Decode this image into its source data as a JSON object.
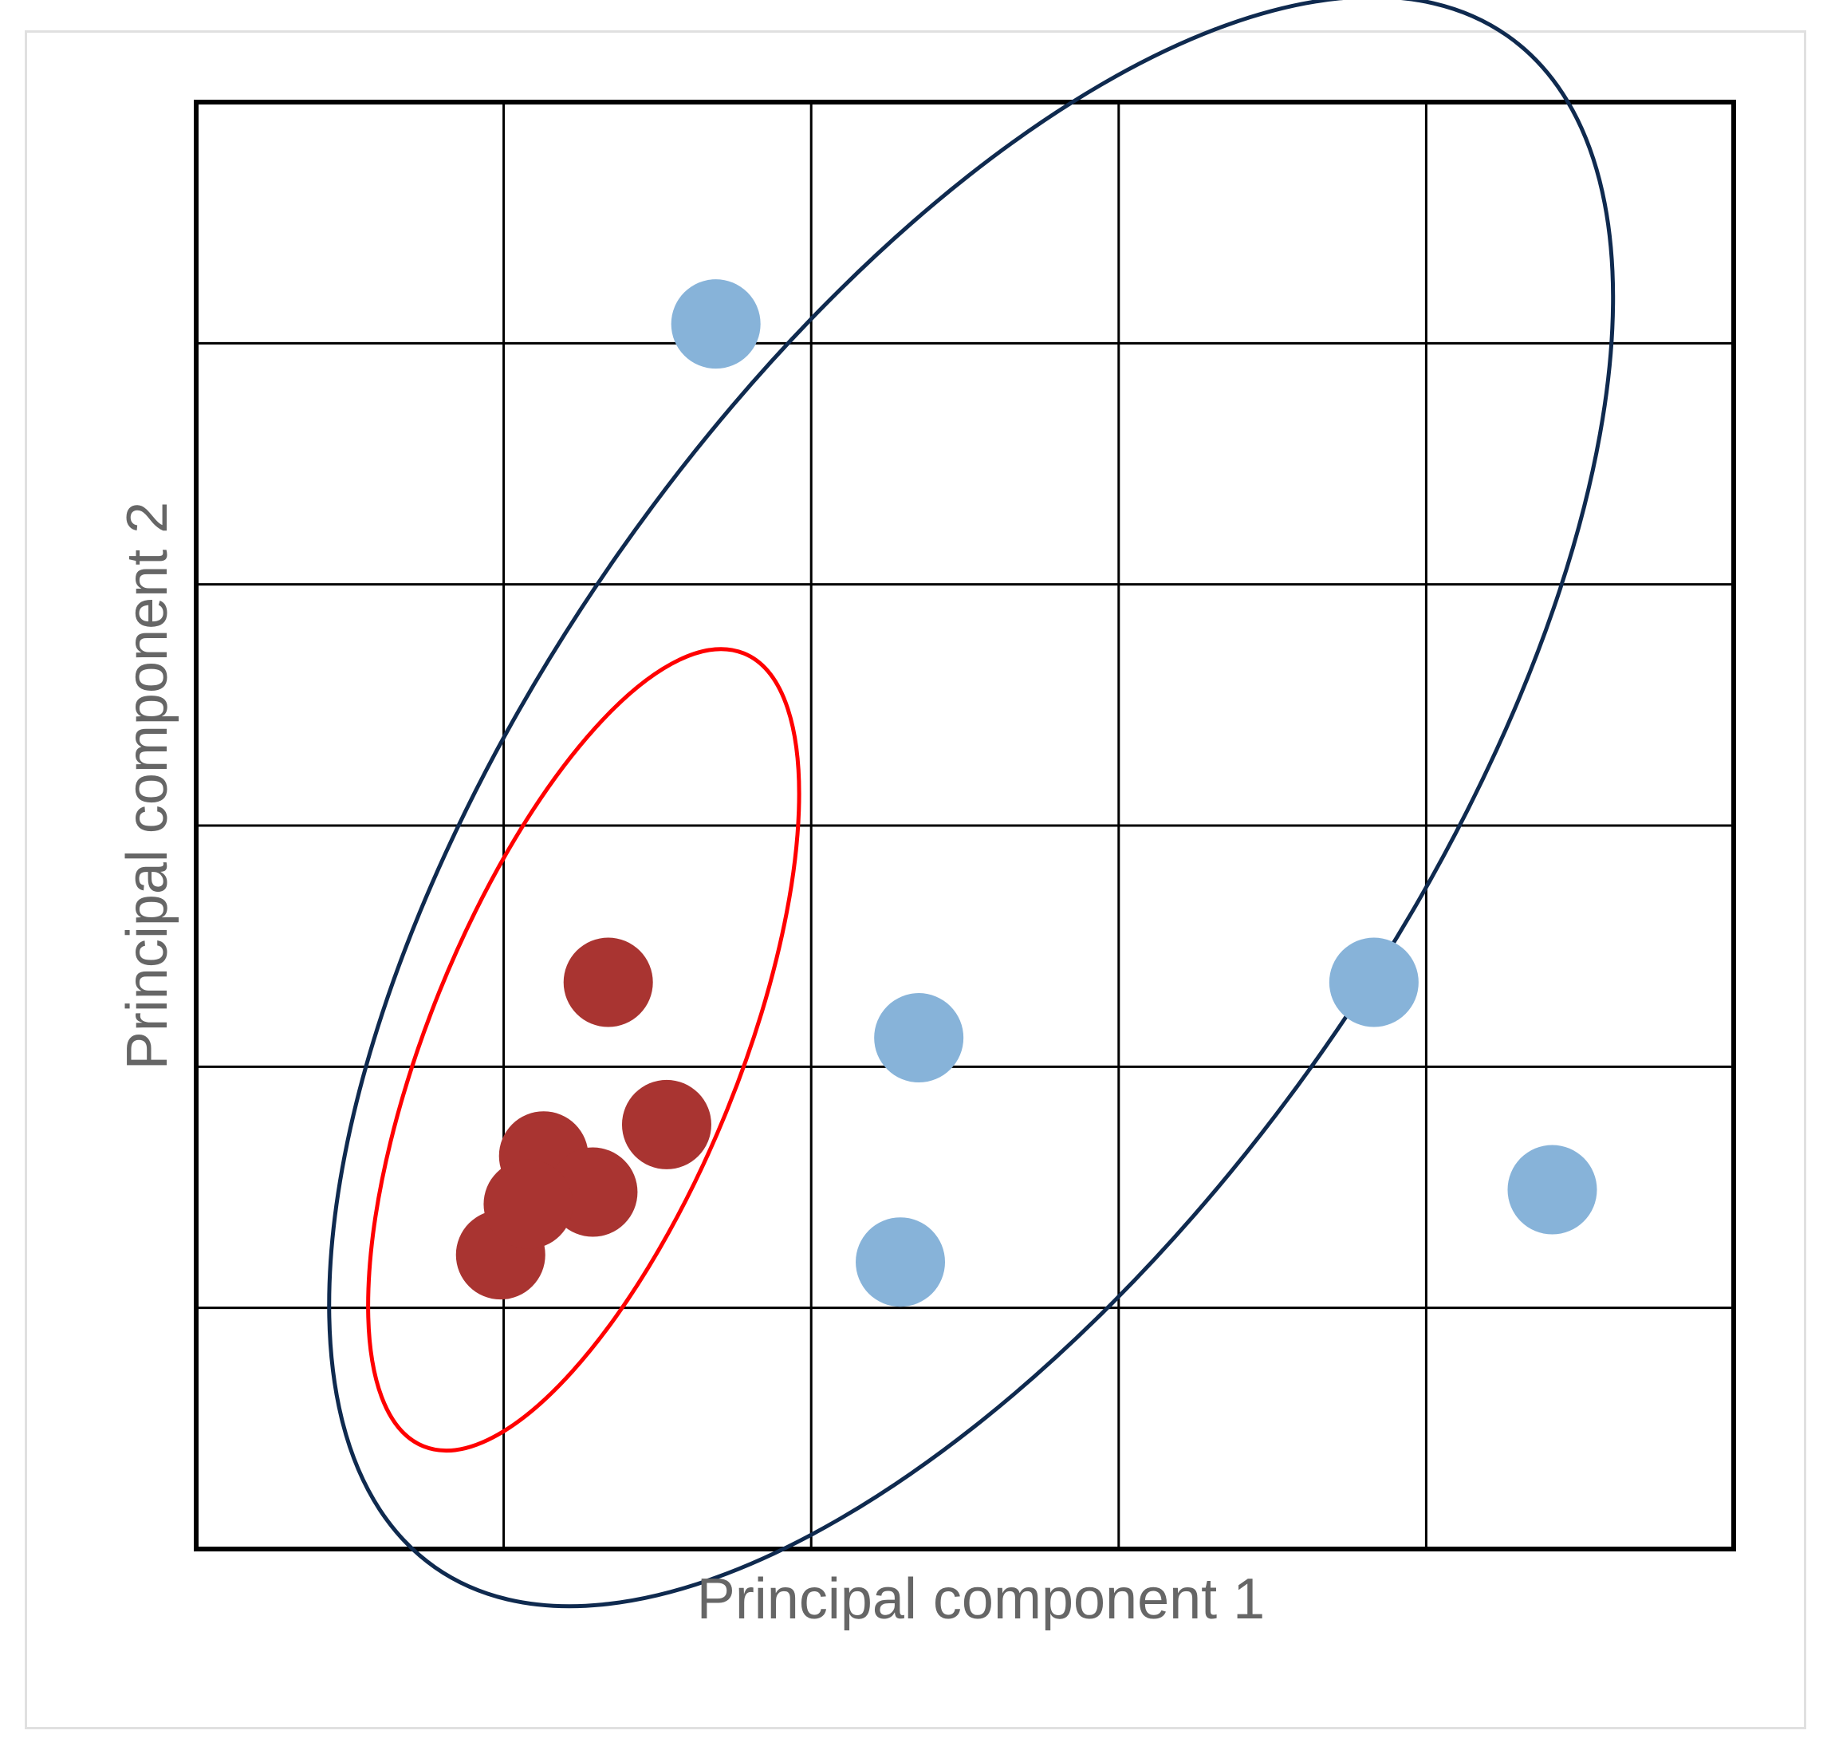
{
  "chart_data": {
    "type": "scatter",
    "title": "",
    "xlabel": "Principal component 1",
    "ylabel": "Principal component 2",
    "xlim": [
      0,
      5
    ],
    "ylim": [
      0,
      6
    ],
    "grid": true,
    "legend": "none",
    "series": [
      {
        "color": "#a93431",
        "points": [
          {
            "x": 1.34,
            "y": 2.35
          },
          {
            "x": 1.53,
            "y": 1.76
          },
          {
            "x": 1.13,
            "y": 1.63
          },
          {
            "x": 1.29,
            "y": 1.48
          },
          {
            "x": 0.99,
            "y": 1.22
          },
          {
            "x": 1.08,
            "y": 1.43
          }
        ]
      },
      {
        "color": "#87b3d9",
        "points": [
          {
            "x": 1.69,
            "y": 5.08
          },
          {
            "x": 2.35,
            "y": 2.12
          },
          {
            "x": 2.29,
            "y": 1.19
          },
          {
            "x": 3.83,
            "y": 2.35
          },
          {
            "x": 4.41,
            "y": 1.49
          }
        ]
      }
    ],
    "clusters": [
      {
        "color": "#ff0000",
        "cx": 1.26,
        "cy": 2.07,
        "rx": 1.7,
        "ry": 0.52,
        "angle_deg": 68
      },
      {
        "color": "#0f2a4f",
        "cx": 2.52,
        "cy": 3.1,
        "rx": 3.53,
        "ry": 1.5,
        "angle_deg": 55
      }
    ]
  }
}
